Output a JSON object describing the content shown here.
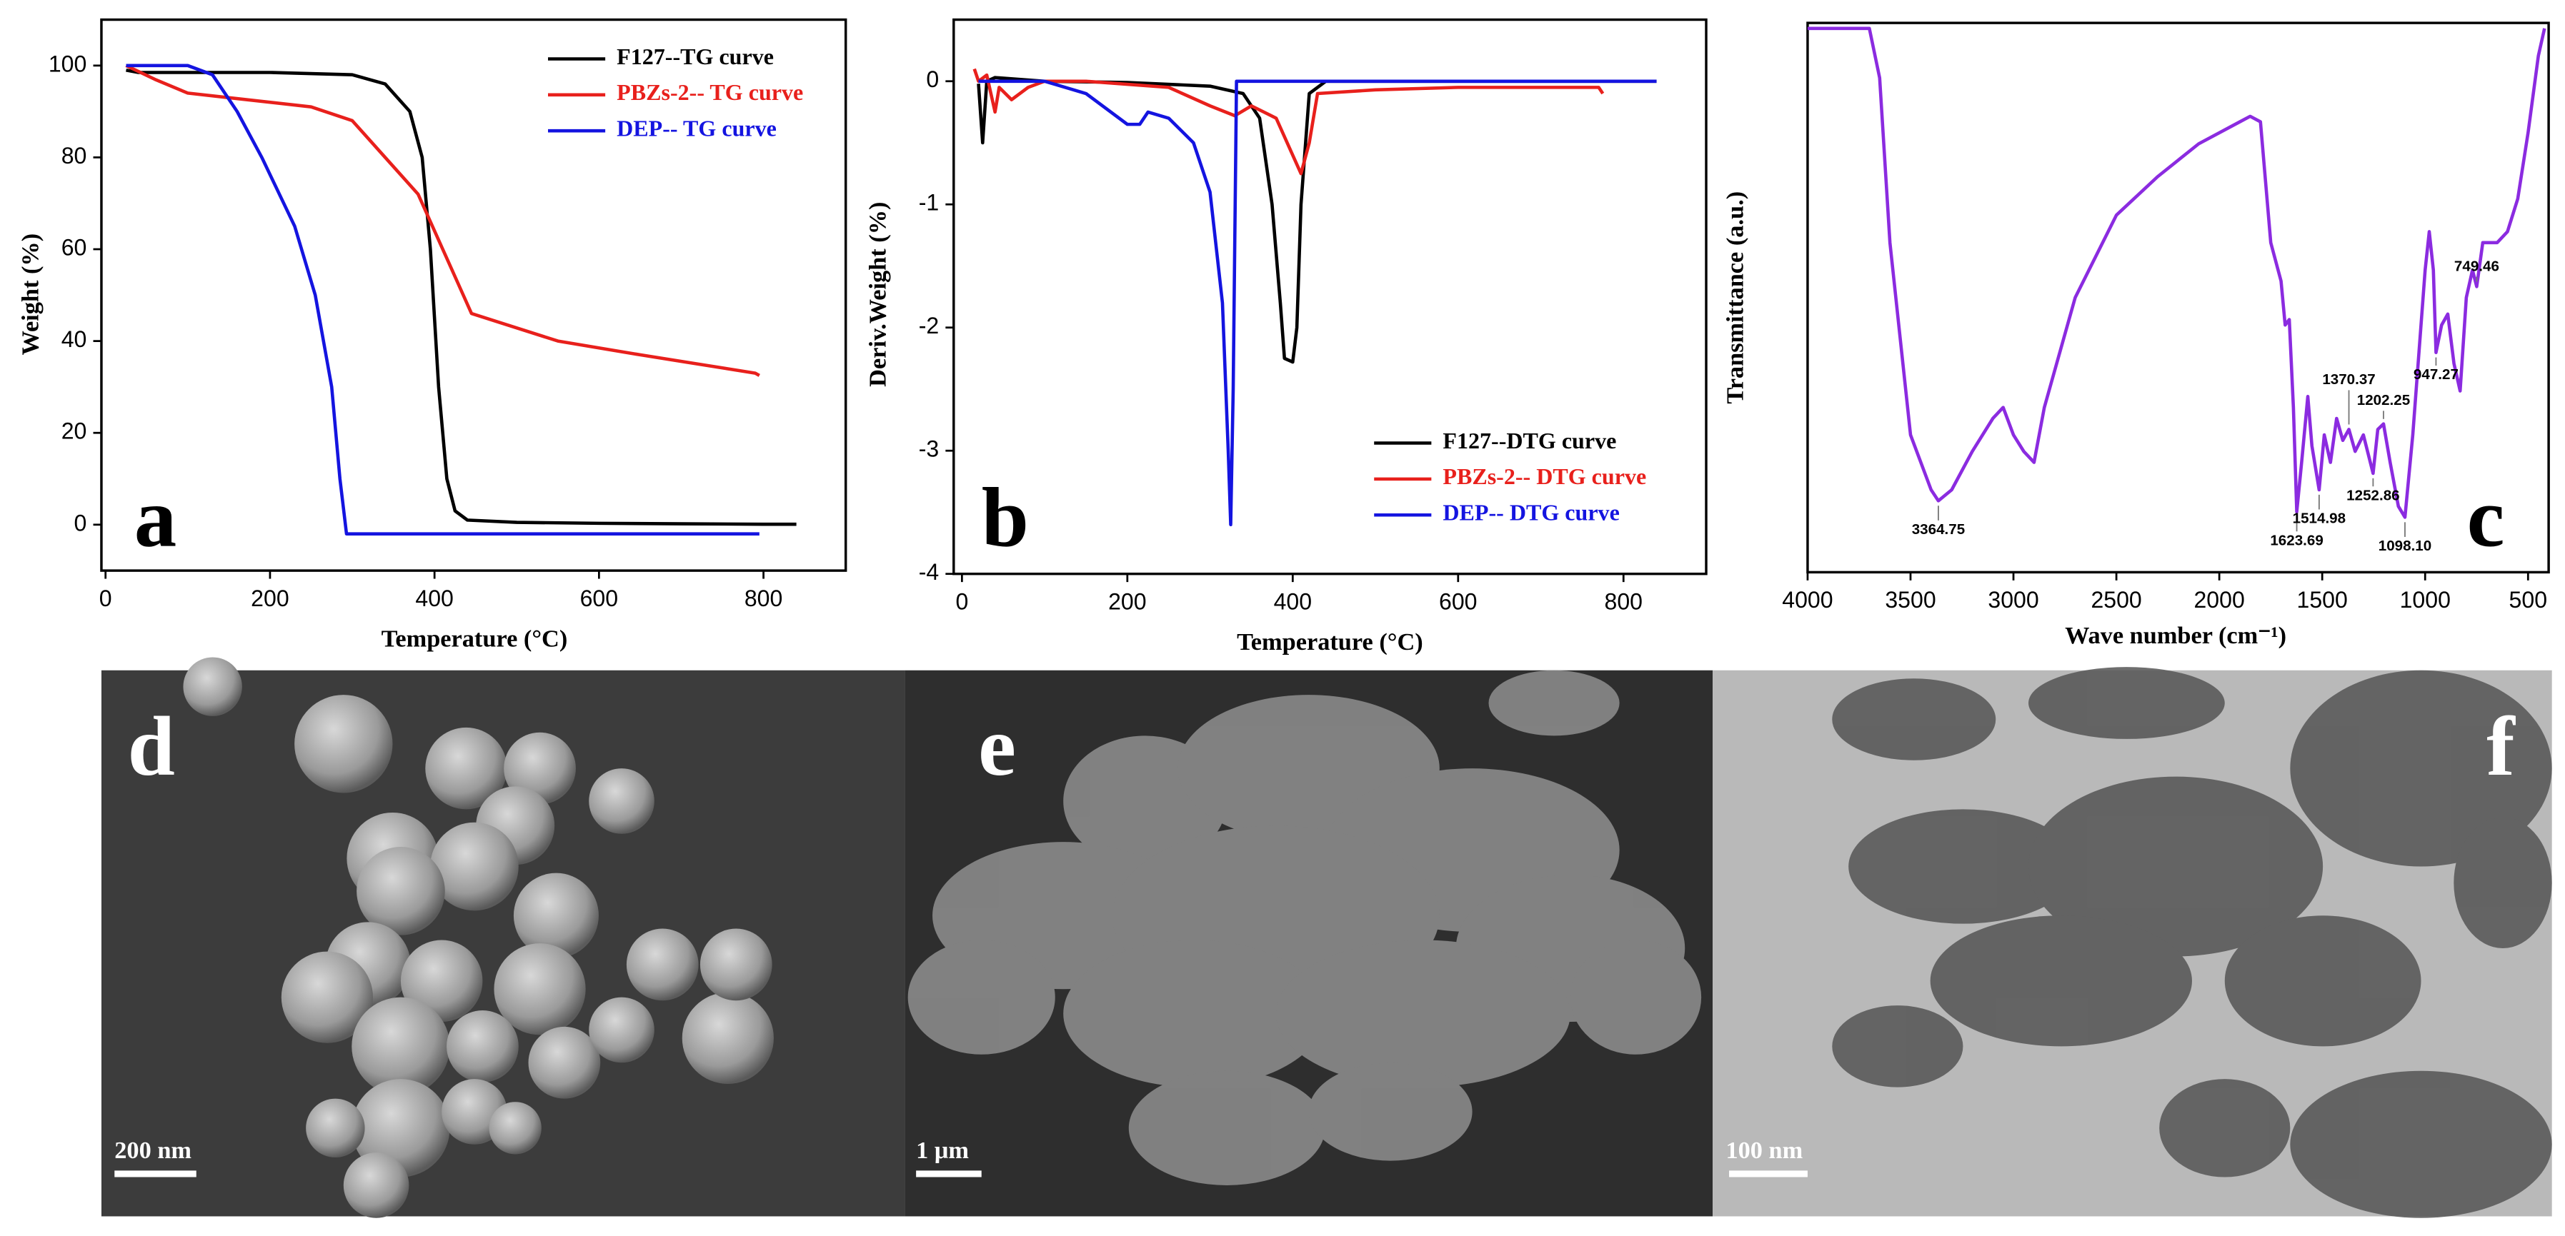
{
  "chart_data": [
    {
      "type": "line",
      "panel_label": "a",
      "x_label": "Temperature (°C)",
      "y_label": "Weight (%)",
      "xlim": [
        -5,
        900
      ],
      "xticks": [
        0,
        200,
        400,
        600,
        800
      ],
      "ylim": [
        -10,
        110
      ],
      "yticks": [
        0,
        20,
        40,
        60,
        80,
        100
      ],
      "legend": "upper right",
      "series": [
        {
          "name": "F127--TG curve",
          "color": "#000000",
          "x": [
            25,
            40,
            100,
            200,
            300,
            340,
            370,
            385,
            395,
            405,
            415,
            425,
            440,
            500,
            600,
            700,
            800,
            840
          ],
          "values": [
            99,
            98.5,
            98.5,
            98.5,
            98,
            96,
            90,
            80,
            60,
            30,
            10,
            3,
            1,
            0.5,
            0.3,
            0.2,
            0.1,
            0.1
          ]
        },
        {
          "name": "PBZs-2-- TG curve",
          "color": "#e8201c",
          "x": [
            25,
            60,
            100,
            150,
            250,
            300,
            340,
            380,
            410,
            445,
            480,
            550,
            650,
            720,
            790,
            795
          ],
          "values": [
            100,
            97,
            94,
            93,
            91,
            88,
            80,
            72,
            60,
            46,
            44,
            40,
            37,
            35,
            33,
            32.5
          ]
        },
        {
          "name": "DEP-- TG curve",
          "color": "#1414e0",
          "x": [
            25,
            100,
            130,
            160,
            190,
            230,
            255,
            275,
            285,
            293,
            400,
            795
          ],
          "values": [
            100,
            100,
            98,
            90,
            80,
            65,
            50,
            30,
            10,
            -2,
            -2,
            -2
          ]
        }
      ]
    },
    {
      "type": "line",
      "panel_label": "b",
      "x_label": "Temperature (°C)",
      "y_label": "Deriv.Weight (%)",
      "xlim": [
        -10,
        900
      ],
      "xticks": [
        0,
        200,
        400,
        600,
        800
      ],
      "ylim": [
        -4,
        0.5
      ],
      "yticks": [
        -4,
        -3,
        -2,
        -1,
        0
      ],
      "legend": "lower right",
      "series": [
        {
          "name": "F127--DTG curve",
          "color": "#000000",
          "x": [
            20,
            25,
            30,
            40,
            100,
            200,
            300,
            340,
            360,
            375,
            385,
            390,
            400,
            405,
            410,
            420,
            440,
            600,
            840
          ],
          "values": [
            -0.02,
            -0.5,
            0,
            0.03,
            0,
            -0.01,
            -0.04,
            -0.1,
            -0.3,
            -1.0,
            -1.8,
            -2.25,
            -2.28,
            -2.0,
            -1.0,
            -0.1,
            0,
            0,
            0
          ]
        },
        {
          "name": "PBZs-2-- DTG curve",
          "color": "#e8201c",
          "x": [
            15,
            20,
            30,
            40,
            45,
            60,
            80,
            100,
            150,
            250,
            300,
            330,
            350,
            380,
            400,
            410,
            420,
            430,
            500,
            600,
            700,
            770,
            775
          ],
          "values": [
            0.1,
            0,
            0.05,
            -0.25,
            -0.05,
            -0.15,
            -0.05,
            0,
            0,
            -0.05,
            -0.2,
            -0.28,
            -0.2,
            -0.3,
            -0.6,
            -0.75,
            -0.5,
            -0.1,
            -0.07,
            -0.05,
            -0.05,
            -0.05,
            -0.1
          ]
        },
        {
          "name": "DEP-- DTG curve",
          "color": "#1414e0",
          "x": [
            20,
            100,
            150,
            200,
            215,
            225,
            250,
            280,
            300,
            315,
            322,
            325,
            328,
            332,
            400,
            840
          ],
          "values": [
            0,
            0,
            -0.1,
            -0.35,
            -0.35,
            -0.25,
            -0.3,
            -0.5,
            -0.9,
            -1.8,
            -3.0,
            -3.6,
            -2.5,
            0,
            0,
            0
          ]
        }
      ]
    },
    {
      "type": "line",
      "panel_label": "c",
      "x_label": "Wave number (cm⁻¹)",
      "y_label": "Transmittance (a.u.)",
      "xlim": [
        4000,
        400
      ],
      "xticks": [
        4000,
        3500,
        3000,
        2500,
        2000,
        1500,
        1000,
        500
      ],
      "ylim": [
        0,
        100
      ],
      "x": [
        4000,
        3700,
        3650,
        3600,
        3500,
        3400,
        3364.75,
        3300,
        3200,
        3100,
        3050,
        3000,
        2950,
        2900,
        2850,
        2700,
        2500,
        2300,
        2100,
        1900,
        1850,
        1800,
        1750,
        1700,
        1680,
        1660,
        1640,
        1623.69,
        1600,
        1570,
        1550,
        1514.98,
        1490,
        1460,
        1430,
        1400,
        1370.37,
        1340,
        1300,
        1252.86,
        1230,
        1202.25,
        1170,
        1130,
        1098.1,
        1060,
        1000,
        980,
        960,
        947.27,
        920,
        890,
        860,
        830,
        800,
        770,
        749.46,
        720,
        650,
        600,
        550,
        500,
        450,
        420
      ],
      "series": [
        {
          "color": "#8b2be0",
          "values": [
            99,
            99,
            90,
            60,
            25,
            15,
            13,
            15,
            22,
            28,
            30,
            25,
            22,
            20,
            30,
            50,
            65,
            72,
            78,
            82,
            83,
            82,
            60,
            53,
            45,
            46,
            30,
            11,
            20,
            32,
            23,
            15,
            25,
            20,
            28,
            24,
            26,
            22,
            25,
            18,
            26,
            27,
            20,
            12,
            10,
            25,
            55,
            62,
            55,
            40,
            45,
            47,
            38,
            33,
            50,
            55,
            52,
            60,
            60,
            62,
            68,
            80,
            94,
            99
          ]
        }
      ],
      "peaks": [
        {
          "value": 3364.75,
          "label": "3364.75"
        },
        {
          "value": 1623.69,
          "label": "1623.69"
        },
        {
          "value": 1514.98,
          "label": "1514.98"
        },
        {
          "value": 1370.37,
          "label": "1370.37"
        },
        {
          "value": 1252.86,
          "label": "1252.86"
        },
        {
          "value": 1202.25,
          "label": "1202.25"
        },
        {
          "value": 1098.1,
          "label": "1098.10"
        },
        {
          "value": 947.27,
          "label": "947.27"
        },
        {
          "value": 749.46,
          "label": "749.46"
        }
      ]
    }
  ],
  "images": [
    {
      "label": "d",
      "scale_bar": "200 nm"
    },
    {
      "label": "e",
      "scale_bar": "1 μm"
    },
    {
      "label": "f",
      "scale_bar": "100 nm"
    }
  ]
}
